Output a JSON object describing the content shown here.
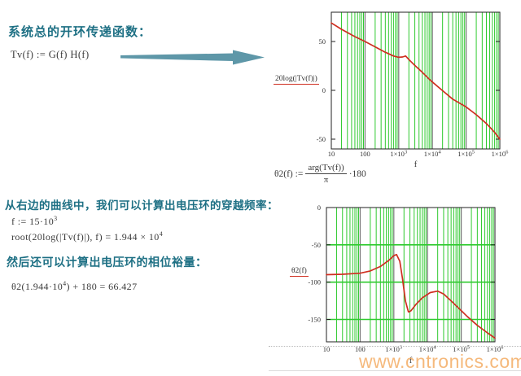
{
  "texts": {
    "heading1": "系统总的开环传递函数：",
    "heading2": "从右边的曲线中，我们可以计算出电压环的穿越频率：",
    "heading3": "然后还可以计算出电压环的相位裕量："
  },
  "formulas": {
    "tv": "Tv(f) := G(f) H(f)",
    "theta_lhs": "θ2(f) :=",
    "theta_num": "arg(Tv(f))",
    "theta_den": "π",
    "theta_mult": "·180",
    "f_guess_base": "f := 15·10",
    "f_guess_exp": "3",
    "root_base": "root(20log(|Tv(f)|), f) = 1.944 × 10",
    "root_exp": "4",
    "pm_base": "θ2(1.944·10",
    "pm_exp": "4",
    "pm_rest": ") + 180 = 66.427"
  },
  "watermark": "www.cntronics.com",
  "colors": {
    "accent_teal": "#1e7084",
    "arrow_teal": "#5e97a8",
    "curve_red": "#cf2e20",
    "grid_minor_green": "#2fca2f",
    "grid_major_gray": "#777777",
    "frame_black": "#222222",
    "watermark_orange": "#f3a658"
  },
  "chart_data": [
    {
      "type": "line",
      "legend": "20log(|Tv(f)|)",
      "xlabel": "f",
      "x_scale": "log",
      "xlim": [
        10,
        1000000
      ],
      "ylim": [
        -60,
        80
      ],
      "x_tick_labels": [
        "10",
        "100",
        "1×10^3",
        "1×10^4",
        "1×10^5",
        "1×10^6"
      ],
      "y_ticks": [
        50,
        0,
        -50
      ],
      "h_gridlines": [],
      "grid_vertical": true,
      "series": [
        {
          "name": "20log(|Tv(f)|)",
          "points": [
            [
              10,
              69
            ],
            [
              20,
              62.5
            ],
            [
              50,
              55
            ],
            [
              100,
              50
            ],
            [
              200,
              44.5
            ],
            [
              400,
              39
            ],
            [
              700,
              35.2
            ],
            [
              1000,
              33.8
            ],
            [
              1300,
              34.2
            ],
            [
              1600,
              35.2
            ],
            [
              2000,
              31.5
            ],
            [
              3000,
              25.5
            ],
            [
              5000,
              18.5
            ],
            [
              8000,
              11.5
            ],
            [
              10000,
              8.5
            ],
            [
              19440,
              0
            ],
            [
              40000,
              -9
            ],
            [
              100000,
              -17
            ],
            [
              200000,
              -25
            ],
            [
              400000,
              -34
            ],
            [
              700000,
              -43
            ],
            [
              1000000,
              -50
            ]
          ]
        }
      ]
    },
    {
      "type": "line",
      "legend": "θ2(f)",
      "xlabel": "f",
      "x_scale": "log",
      "xlim": [
        10,
        1000000
      ],
      "ylim": [
        -180,
        0
      ],
      "x_tick_labels": [
        "10",
        "100",
        "1×10^3",
        "1×10^4",
        "1×10^5",
        "1×10^6"
      ],
      "y_ticks": [
        0,
        -50,
        -100,
        -150
      ],
      "h_gridlines": [
        -50,
        -100,
        -150
      ],
      "grid_vertical": true,
      "series": [
        {
          "name": "θ2(f)",
          "points": [
            [
              10,
              -90
            ],
            [
              30,
              -89.5
            ],
            [
              100,
              -88
            ],
            [
              200,
              -85
            ],
            [
              400,
              -79
            ],
            [
              700,
              -71
            ],
            [
              1000,
              -64.5
            ],
            [
              1200,
              -63
            ],
            [
              1500,
              -72
            ],
            [
              1800,
              -95
            ],
            [
              2200,
              -125
            ],
            [
              2700,
              -140
            ],
            [
              3200,
              -138.5
            ],
            [
              4500,
              -130
            ],
            [
              7000,
              -121
            ],
            [
              12000,
              -114
            ],
            [
              20000,
              -112
            ],
            [
              30000,
              -116
            ],
            [
              50000,
              -125
            ],
            [
              80000,
              -134
            ],
            [
              150000,
              -146
            ],
            [
              300000,
              -158
            ],
            [
              600000,
              -168
            ],
            [
              1000000,
              -175
            ]
          ]
        }
      ]
    }
  ]
}
